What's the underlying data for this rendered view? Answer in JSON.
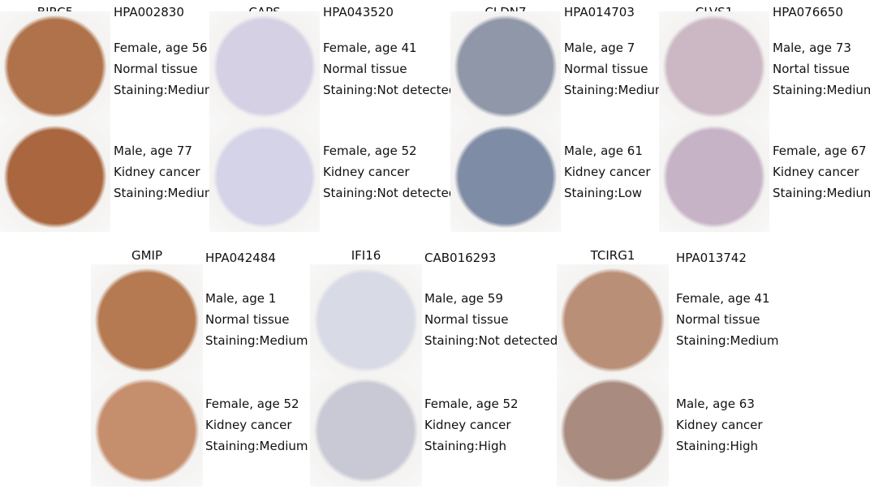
{
  "panels": [
    {
      "gene": "BIRC5",
      "antibody": "HPA002830",
      "samples": [
        [
          "Female, age 56",
          "Normal tissue",
          "Staining:Medium"
        ],
        [
          "Male, age 77",
          "Kidney cancer",
          "Staining:Medium"
        ]
      ]
    },
    {
      "gene": "CAPS",
      "antibody": "HPA043520",
      "samples": [
        [
          "Female, age 41",
          "Normal tissue",
          "Staining:Not detected"
        ],
        [
          "Female, age 52",
          "Kidney cancer",
          "Staining:Not detected"
        ]
      ]
    },
    {
      "gene": "CLDN7",
      "antibody": "HPA014703",
      "samples": [
        [
          "Male, age 7",
          "Normal tissue",
          "Staining:Medium"
        ],
        [
          "Male, age 61",
          "Kidney cancer",
          "Staining:Low"
        ]
      ]
    },
    {
      "gene": "CLVS1",
      "antibody": "HPA076650",
      "samples": [
        [
          "Male, age 73",
          "Nortal tissue",
          "Staining:Medium"
        ],
        [
          "Female, age 67",
          "Kidney cancer",
          "Staining:Medium"
        ]
      ]
    },
    {
      "gene": "GMIP",
      "antibody": "HPA042484",
      "samples": [
        [
          "Male, age 1",
          "Normal tissue",
          "Staining:Medium"
        ],
        [
          "Female, age 52",
          "Kidney cancer",
          "Staining:Medium"
        ]
      ]
    },
    {
      "gene": "IFI16",
      "antibody": "CAB016293",
      "samples": [
        [
          "Male, age 59",
          "Normal tissue",
          "Staining:Not detected"
        ],
        [
          "Female, age 52",
          "Kidney cancer",
          "Staining:High"
        ]
      ]
    },
    {
      "gene": "TCIRG1",
      "antibody": "HPA013742",
      "samples": [
        [
          "Female, age 41",
          "Normal tissue",
          "Staining:Medium"
        ],
        [
          "Male, age 63",
          "Kidney cancer",
          "Staining:High"
        ]
      ]
    }
  ]
}
